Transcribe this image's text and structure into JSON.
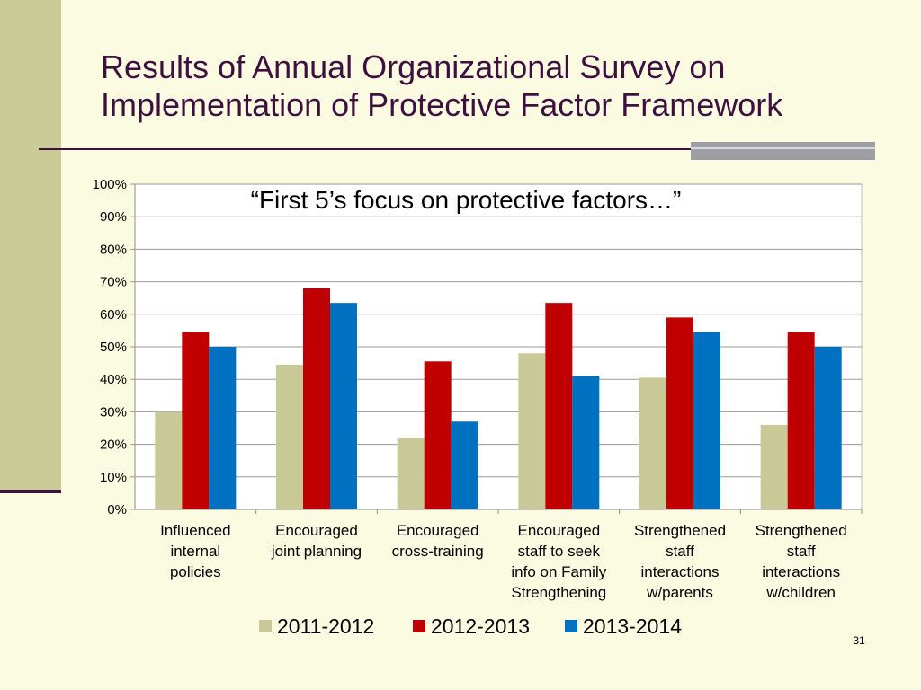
{
  "slide": {
    "title": "Results of Annual Organizational Survey on Implementation of Protective Factor Framework",
    "page_number": "31"
  },
  "chart_data": {
    "type": "bar",
    "annotation": "“First 5’s focus on protective factors…”",
    "categories": [
      [
        "Influenced",
        "internal",
        "policies"
      ],
      [
        "Encouraged",
        "joint planning"
      ],
      [
        "Encouraged",
        "cross-training"
      ],
      [
        "Encouraged",
        "staff to seek",
        "info on Family",
        "Strengthening"
      ],
      [
        "Strengthened",
        "staff",
        "interactions",
        "w/parents"
      ],
      [
        "Strengthened",
        "staff",
        "interactions",
        "w/children"
      ]
    ],
    "series": [
      {
        "name": "2011-2012",
        "color": "#c9c998",
        "values": [
          30,
          44.5,
          22,
          48,
          40.5,
          26
        ]
      },
      {
        "name": "2012-2013",
        "color": "#c00000",
        "values": [
          54.5,
          68,
          45.5,
          63.5,
          59,
          54.5
        ]
      },
      {
        "name": "2013-2014",
        "color": "#0070c0",
        "values": [
          50,
          63.5,
          27,
          41,
          54.5,
          50
        ]
      }
    ],
    "ylim": [
      0,
      100
    ],
    "yticks": [
      "0%",
      "10%",
      "20%",
      "30%",
      "40%",
      "50%",
      "60%",
      "70%",
      "80%",
      "90%",
      "100%"
    ],
    "grid": true,
    "legend_position": "bottom"
  }
}
